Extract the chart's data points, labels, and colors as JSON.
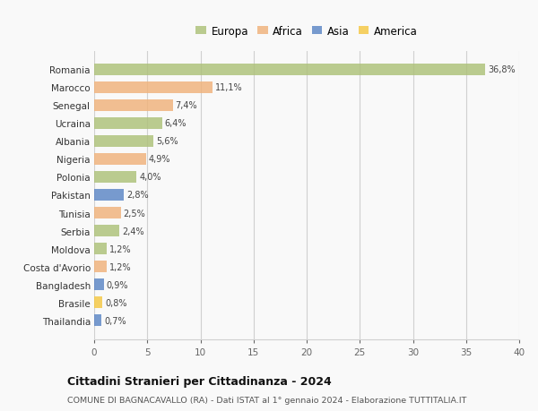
{
  "countries": [
    "Romania",
    "Marocco",
    "Senegal",
    "Ucraina",
    "Albania",
    "Nigeria",
    "Polonia",
    "Pakistan",
    "Tunisia",
    "Serbia",
    "Moldova",
    "Costa d'Avorio",
    "Bangladesh",
    "Brasile",
    "Thailandia"
  ],
  "values": [
    36.8,
    11.1,
    7.4,
    6.4,
    5.6,
    4.9,
    4.0,
    2.8,
    2.5,
    2.4,
    1.2,
    1.2,
    0.9,
    0.8,
    0.7
  ],
  "labels": [
    "36,8%",
    "11,1%",
    "7,4%",
    "6,4%",
    "5,6%",
    "4,9%",
    "4,0%",
    "2,8%",
    "2,5%",
    "2,4%",
    "1,2%",
    "1,2%",
    "0,9%",
    "0,8%",
    "0,7%"
  ],
  "continents": [
    "Europa",
    "Africa",
    "Africa",
    "Europa",
    "Europa",
    "Africa",
    "Europa",
    "Asia",
    "Africa",
    "Europa",
    "Europa",
    "Africa",
    "Asia",
    "America",
    "Asia"
  ],
  "colors": {
    "Europa": "#adc178",
    "Africa": "#f0b27a",
    "Asia": "#5b85c5",
    "America": "#f5c842"
  },
  "title": "Cittadini Stranieri per Cittadinanza - 2024",
  "subtitle": "COMUNE DI BAGNACAVALLO (RA) - Dati ISTAT al 1° gennaio 2024 - Elaborazione TUTTITALIA.IT",
  "xlim": [
    0,
    40
  ],
  "xticks": [
    0,
    5,
    10,
    15,
    20,
    25,
    30,
    35,
    40
  ],
  "background_color": "#f9f9f9",
  "grid_color": "#d0d0d0",
  "bar_alpha": 0.82,
  "legend_order": [
    "Europa",
    "Africa",
    "Asia",
    "America"
  ]
}
